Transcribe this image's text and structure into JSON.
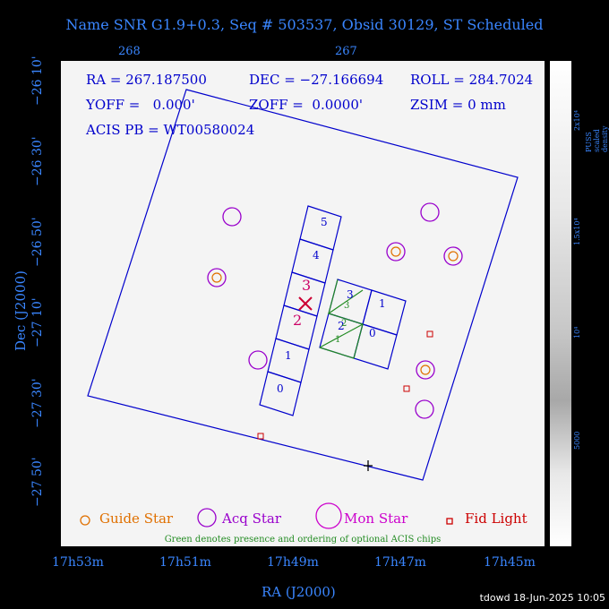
{
  "title": "Name SNR G1.9+0.3, Seq # 503537, Obsid 30129, ST Scheduled",
  "top_ticks": [
    "268",
    "267"
  ],
  "info": {
    "ra": "RA = 267.187500",
    "dec": "DEC = −27.166694",
    "roll": "ROLL = 284.7024",
    "yoff": "YOFF =   0.000'",
    "zoff": "ZOFF =  0.0000'",
    "zsim": "ZSIM = 0 mm",
    "acis": "ACIS PB = WT00580024"
  },
  "chips_left": [
    "5",
    "4",
    "3",
    "2",
    "1",
    "0"
  ],
  "chips_right": [
    "3",
    "2",
    "1",
    "0"
  ],
  "chips_right_green": [
    "3",
    "2",
    "1"
  ],
  "legend": {
    "guide": "Guide Star",
    "acq": "Acq Star",
    "mon": "Mon Star",
    "fid": "Fid Light",
    "note": "Green denotes presence and ordering of optional ACIS chips"
  },
  "colorbar": {
    "title": "PUSS scaled density",
    "labels": [
      "2x10⁴",
      "1.5x10⁴",
      "10⁴",
      "5000"
    ]
  },
  "ra_axis": {
    "label": "RA (J2000)",
    "ticks": [
      "17h53m",
      "17h51m",
      "17h49m",
      "17h47m",
      "17h45m"
    ]
  },
  "dec_axis": {
    "label": "Dec (J2000)",
    "ticks": [
      "−26 10'",
      "−26 30'",
      "−26 50'",
      "−27 10'",
      "−27 30'",
      "−27 50'"
    ]
  },
  "timestamp": "tdowd 18-Jun-2025 10:05",
  "colors": {
    "axis": "#3a86ff",
    "field": "#0000cc",
    "guide": "#e07000",
    "acq": "#9900cc",
    "mon": "#cc00cc",
    "fid": "#cc0000",
    "optional": "#228b22",
    "aimpoint": "#cc0033"
  }
}
